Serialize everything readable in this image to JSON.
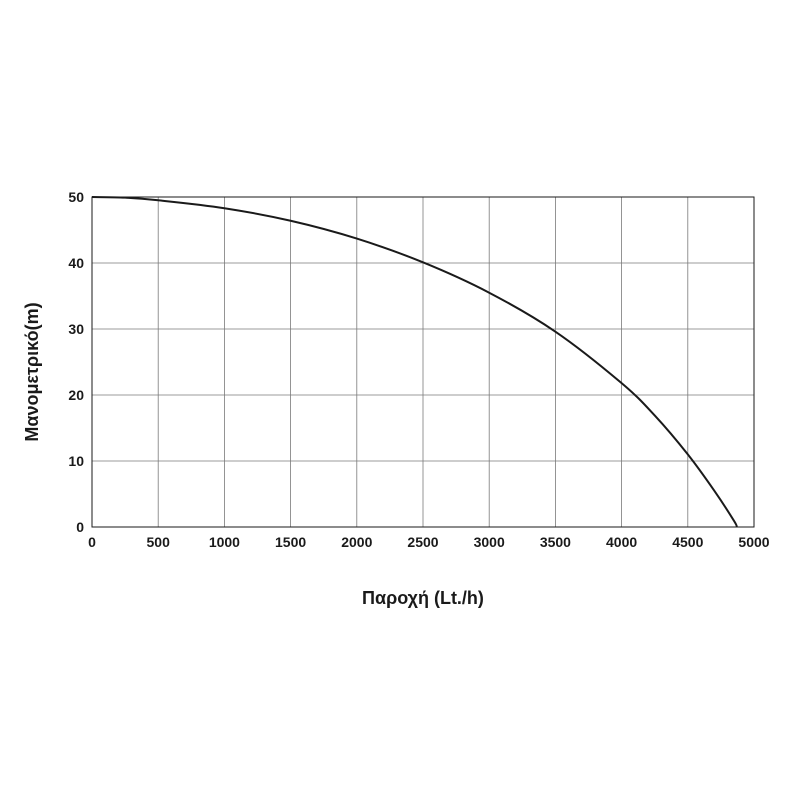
{
  "chart_data": {
    "type": "line",
    "title": "",
    "xlabel": "Παροχή (Lt./h)",
    "ylabel": "Μανομετρικό(m)",
    "xlim": [
      0,
      5000
    ],
    "ylim": [
      0,
      50
    ],
    "xticks": [
      0,
      500,
      1000,
      1500,
      2000,
      2500,
      3000,
      3500,
      4000,
      4500,
      5000
    ],
    "yticks": [
      0,
      10,
      20,
      30,
      40,
      50
    ],
    "grid": true,
    "series": [
      {
        "color": "#1a1a1a",
        "x": [
          0,
          250,
          500,
          1000,
          1500,
          2000,
          2500,
          3000,
          3500,
          4000,
          4250,
          4500,
          4700,
          4850,
          4870
        ],
        "y": [
          50,
          49.9,
          49.5,
          48.3,
          46.4,
          43.7,
          40.1,
          35.5,
          29.6,
          21.8,
          16.9,
          11.0,
          5.5,
          0.9,
          0
        ]
      }
    ]
  }
}
